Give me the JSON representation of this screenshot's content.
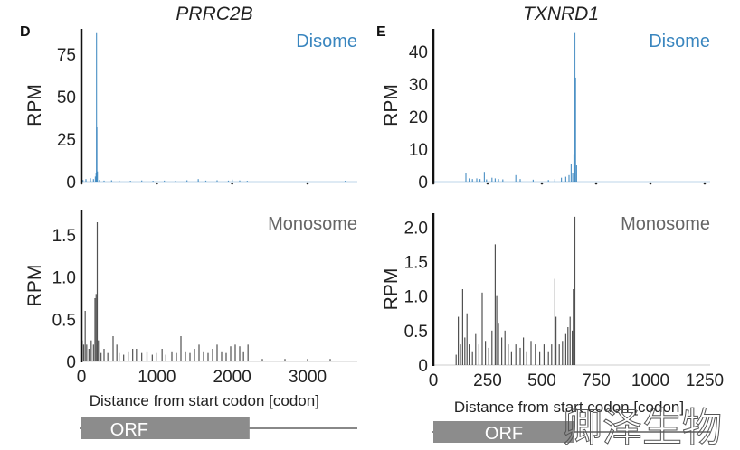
{
  "chart_data": [
    {
      "panel": "D",
      "title": "PRRC2B",
      "type": "bar",
      "xlabel": "Distance from start codon [codon]",
      "x_ticks": [
        "0",
        "1000",
        "2000",
        "3000"
      ],
      "xlim": [
        0,
        3650
      ],
      "orf": {
        "label": "ORF",
        "start": 0,
        "end": 2230
      },
      "subplots": [
        {
          "name": "Disome",
          "color": "#3a86bf",
          "ylabel": "RPM",
          "ylim": [
            0,
            90
          ],
          "y_ticks": [
            "0",
            "25",
            "50",
            "75"
          ],
          "y_tick_values": [
            0,
            25,
            50,
            75
          ],
          "points": [
            [
              20,
              1
            ],
            [
              60,
              1.5
            ],
            [
              120,
              2
            ],
            [
              160,
              1.5
            ],
            [
              185,
              3
            ],
            [
              195,
              5
            ],
            [
              200,
              88
            ],
            [
              205,
              32
            ],
            [
              212,
              6
            ],
            [
              240,
              1
            ],
            [
              300,
              0.6
            ],
            [
              400,
              0.8
            ],
            [
              500,
              0.6
            ],
            [
              650,
              0.5
            ],
            [
              800,
              0.7
            ],
            [
              950,
              0.5
            ],
            [
              1100,
              0.6
            ],
            [
              1250,
              0.5
            ],
            [
              1400,
              0.8
            ],
            [
              1550,
              1.5
            ],
            [
              1650,
              0.6
            ],
            [
              1800,
              0.8
            ],
            [
              1950,
              0.6
            ],
            [
              2000,
              1.2
            ],
            [
              2100,
              0.7
            ],
            [
              2200,
              0.5
            ],
            [
              3500,
              0.5
            ]
          ]
        },
        {
          "name": "Monosome",
          "color": "#333333",
          "ylabel": "RPM",
          "ylim": [
            0,
            1.8
          ],
          "y_ticks": [
            "0",
            "0.5",
            "1.0",
            "1.5"
          ],
          "y_tick_values": [
            0,
            0.5,
            1.0,
            1.5
          ],
          "points": [
            [
              10,
              0.25
            ],
            [
              30,
              0.2
            ],
            [
              50,
              0.6
            ],
            [
              70,
              0.2
            ],
            [
              100,
              0.15
            ],
            [
              130,
              0.25
            ],
            [
              160,
              0.2
            ],
            [
              180,
              0.75
            ],
            [
              195,
              0.8
            ],
            [
              210,
              1.65
            ],
            [
              225,
              0.25
            ],
            [
              260,
              0.1
            ],
            [
              300,
              0.15
            ],
            [
              350,
              0.1
            ],
            [
              420,
              0.3
            ],
            [
              470,
              0.2
            ],
            [
              500,
              0.1
            ],
            [
              560,
              0.08
            ],
            [
              620,
              0.12
            ],
            [
              680,
              0.15
            ],
            [
              730,
              0.15
            ],
            [
              800,
              0.1
            ],
            [
              870,
              0.12
            ],
            [
              940,
              0.08
            ],
            [
              1000,
              0.1
            ],
            [
              1070,
              0.15
            ],
            [
              1120,
              0.08
            ],
            [
              1200,
              0.12
            ],
            [
              1260,
              0.1
            ],
            [
              1320,
              0.3
            ],
            [
              1380,
              0.12
            ],
            [
              1440,
              0.1
            ],
            [
              1500,
              0.15
            ],
            [
              1560,
              0.2
            ],
            [
              1620,
              0.12
            ],
            [
              1680,
              0.1
            ],
            [
              1740,
              0.15
            ],
            [
              1800,
              0.2
            ],
            [
              1860,
              0.12
            ],
            [
              1920,
              0.1
            ],
            [
              1980,
              0.18
            ],
            [
              2040,
              0.2
            ],
            [
              2100,
              0.18
            ],
            [
              2150,
              0.12
            ],
            [
              2210,
              0.2
            ],
            [
              2400,
              0.03
            ],
            [
              2700,
              0.03
            ],
            [
              3000,
              0.03
            ],
            [
              3300,
              0.03
            ]
          ]
        }
      ]
    },
    {
      "panel": "E",
      "title": "TXNRD1",
      "type": "bar",
      "xlabel": "Distance from start codon [codon]",
      "x_ticks": [
        "0",
        "250",
        "500",
        "750",
        "1000",
        "1250"
      ],
      "xlim": [
        0,
        1290
      ],
      "orf": {
        "label": "ORF",
        "start": 0,
        "end": 650
      },
      "subplots": [
        {
          "name": "Disome",
          "color": "#3a86bf",
          "ylabel": "RPM",
          "ylim": [
            0,
            47
          ],
          "y_ticks": [
            "0",
            "10",
            "20",
            "30",
            "40"
          ],
          "y_tick_values": [
            0,
            10,
            20,
            30,
            40
          ],
          "points": [
            [
              150,
              2.5
            ],
            [
              165,
              1
            ],
            [
              180,
              0.8
            ],
            [
              200,
              1
            ],
            [
              215,
              0.8
            ],
            [
              235,
              3
            ],
            [
              245,
              0.7
            ],
            [
              270,
              1.2
            ],
            [
              285,
              1
            ],
            [
              300,
              0.8
            ],
            [
              320,
              0.7
            ],
            [
              380,
              2
            ],
            [
              400,
              0.8
            ],
            [
              460,
              0.6
            ],
            [
              530,
              0.5
            ],
            [
              560,
              0.8
            ],
            [
              590,
              1.2
            ],
            [
              610,
              1.5
            ],
            [
              625,
              2
            ],
            [
              635,
              5.5
            ],
            [
              642,
              2.5
            ],
            [
              648,
              8.5
            ],
            [
              652,
              46
            ],
            [
              655,
              32
            ],
            [
              660,
              5
            ]
          ]
        },
        {
          "name": "Monosome",
          "color": "#333333",
          "ylabel": "RPM",
          "ylim": [
            0,
            2.2
          ],
          "y_ticks": [
            "0",
            "0.5",
            "1.0",
            "1.5",
            "2.0"
          ],
          "y_tick_values": [
            0,
            0.5,
            1.0,
            1.5,
            2.0
          ],
          "points": [
            [
              105,
              0.15
            ],
            [
              115,
              0.7
            ],
            [
              125,
              0.3
            ],
            [
              135,
              1.1
            ],
            [
              145,
              0.4
            ],
            [
              155,
              0.75
            ],
            [
              165,
              0.3
            ],
            [
              180,
              0.2
            ],
            [
              195,
              0.45
            ],
            [
              210,
              0.3
            ],
            [
              225,
              1.05
            ],
            [
              240,
              0.35
            ],
            [
              255,
              0.25
            ],
            [
              270,
              0.5
            ],
            [
              285,
              1.75
            ],
            [
              292,
              1.0
            ],
            [
              300,
              0.6
            ],
            [
              315,
              0.4
            ],
            [
              330,
              0.5
            ],
            [
              345,
              0.3
            ],
            [
              360,
              0.2
            ],
            [
              380,
              0.3
            ],
            [
              400,
              0.25
            ],
            [
              415,
              0.4
            ],
            [
              430,
              0.2
            ],
            [
              450,
              0.35
            ],
            [
              470,
              0.3
            ],
            [
              490,
              0.2
            ],
            [
              510,
              0.3
            ],
            [
              530,
              0.2
            ],
            [
              545,
              0.3
            ],
            [
              560,
              1.25
            ],
            [
              565,
              0.7
            ],
            [
              580,
              0.3
            ],
            [
              595,
              0.35
            ],
            [
              610,
              0.45
            ],
            [
              620,
              0.55
            ],
            [
              630,
              0.7
            ],
            [
              640,
              0.5
            ],
            [
              645,
              1.1
            ],
            [
              652,
              2.15
            ]
          ]
        }
      ]
    }
  ],
  "watermark": "卿泽生物"
}
